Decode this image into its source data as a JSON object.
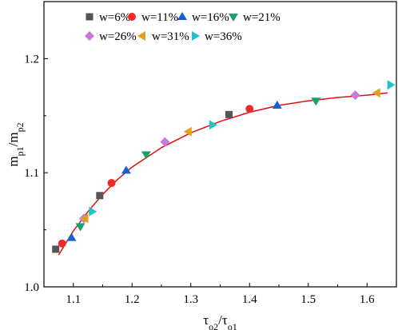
{
  "chart_data": {
    "type": "scatter",
    "title": "",
    "xlabel": "τo2/τo1",
    "ylabel": "mp1/mp2",
    "xlim": [
      1.05,
      1.65
    ],
    "ylim": [
      1.0,
      1.25
    ],
    "x_ticks": [
      "1.1",
      "1.2",
      "1.3",
      "1.4",
      "1.5",
      "1.6"
    ],
    "y_ticks": [
      "1.0",
      "1.1",
      "1.2"
    ],
    "x_tick_values": [
      1.1,
      1.2,
      1.3,
      1.4,
      1.5,
      1.6
    ],
    "y_tick_values": [
      1.0,
      1.1,
      1.2
    ],
    "grid": false,
    "legend": "top",
    "series": [
      {
        "name": "w=6%",
        "marker": "square",
        "color": "#555555",
        "points": [
          [
            1.07,
            1.033
          ],
          [
            1.145,
            1.08
          ],
          [
            1.365,
            1.151
          ]
        ]
      },
      {
        "name": "w=11%",
        "marker": "circle",
        "color": "#ee2a2a",
        "points": [
          [
            1.081,
            1.038
          ],
          [
            1.165,
            1.091
          ],
          [
            1.4,
            1.156
          ]
        ]
      },
      {
        "name": "w=16%",
        "marker": "triangle-up",
        "color": "#1a5fd1",
        "points": [
          [
            1.097,
            1.043
          ],
          [
            1.19,
            1.102
          ],
          [
            1.447,
            1.159
          ]
        ]
      },
      {
        "name": "w=21%",
        "marker": "triangle-down",
        "color": "#15a36a",
        "points": [
          [
            1.112,
            1.053
          ],
          [
            1.224,
            1.116
          ],
          [
            1.513,
            1.163
          ]
        ]
      },
      {
        "name": "w=26%",
        "marker": "diamond",
        "color": "#c77ad9",
        "points": [
          [
            1.118,
            1.06
          ],
          [
            1.256,
            1.127
          ],
          [
            1.58,
            1.168
          ]
        ]
      },
      {
        "name": "w=31%",
        "marker": "triangle-left",
        "color": "#e0a21a",
        "points": [
          [
            1.12,
            1.06
          ],
          [
            1.296,
            1.136
          ],
          [
            1.617,
            1.17
          ]
        ]
      },
      {
        "name": "w=36%",
        "marker": "triangle-right",
        "color": "#22c3c7",
        "points": [
          [
            1.132,
            1.066
          ],
          [
            1.337,
            1.142
          ],
          [
            1.64,
            1.177
          ]
        ]
      }
    ],
    "fit_curve": {
      "color": "#e01010",
      "points": [
        [
          1.075,
          1.028
        ],
        [
          1.1,
          1.049
        ],
        [
          1.125,
          1.066
        ],
        [
          1.15,
          1.081
        ],
        [
          1.175,
          1.094
        ],
        [
          1.2,
          1.105
        ],
        [
          1.25,
          1.122
        ],
        [
          1.3,
          1.135
        ],
        [
          1.35,
          1.145
        ],
        [
          1.4,
          1.153
        ],
        [
          1.45,
          1.159
        ],
        [
          1.5,
          1.163
        ],
        [
          1.55,
          1.166
        ],
        [
          1.6,
          1.168
        ],
        [
          1.635,
          1.17
        ]
      ]
    }
  }
}
